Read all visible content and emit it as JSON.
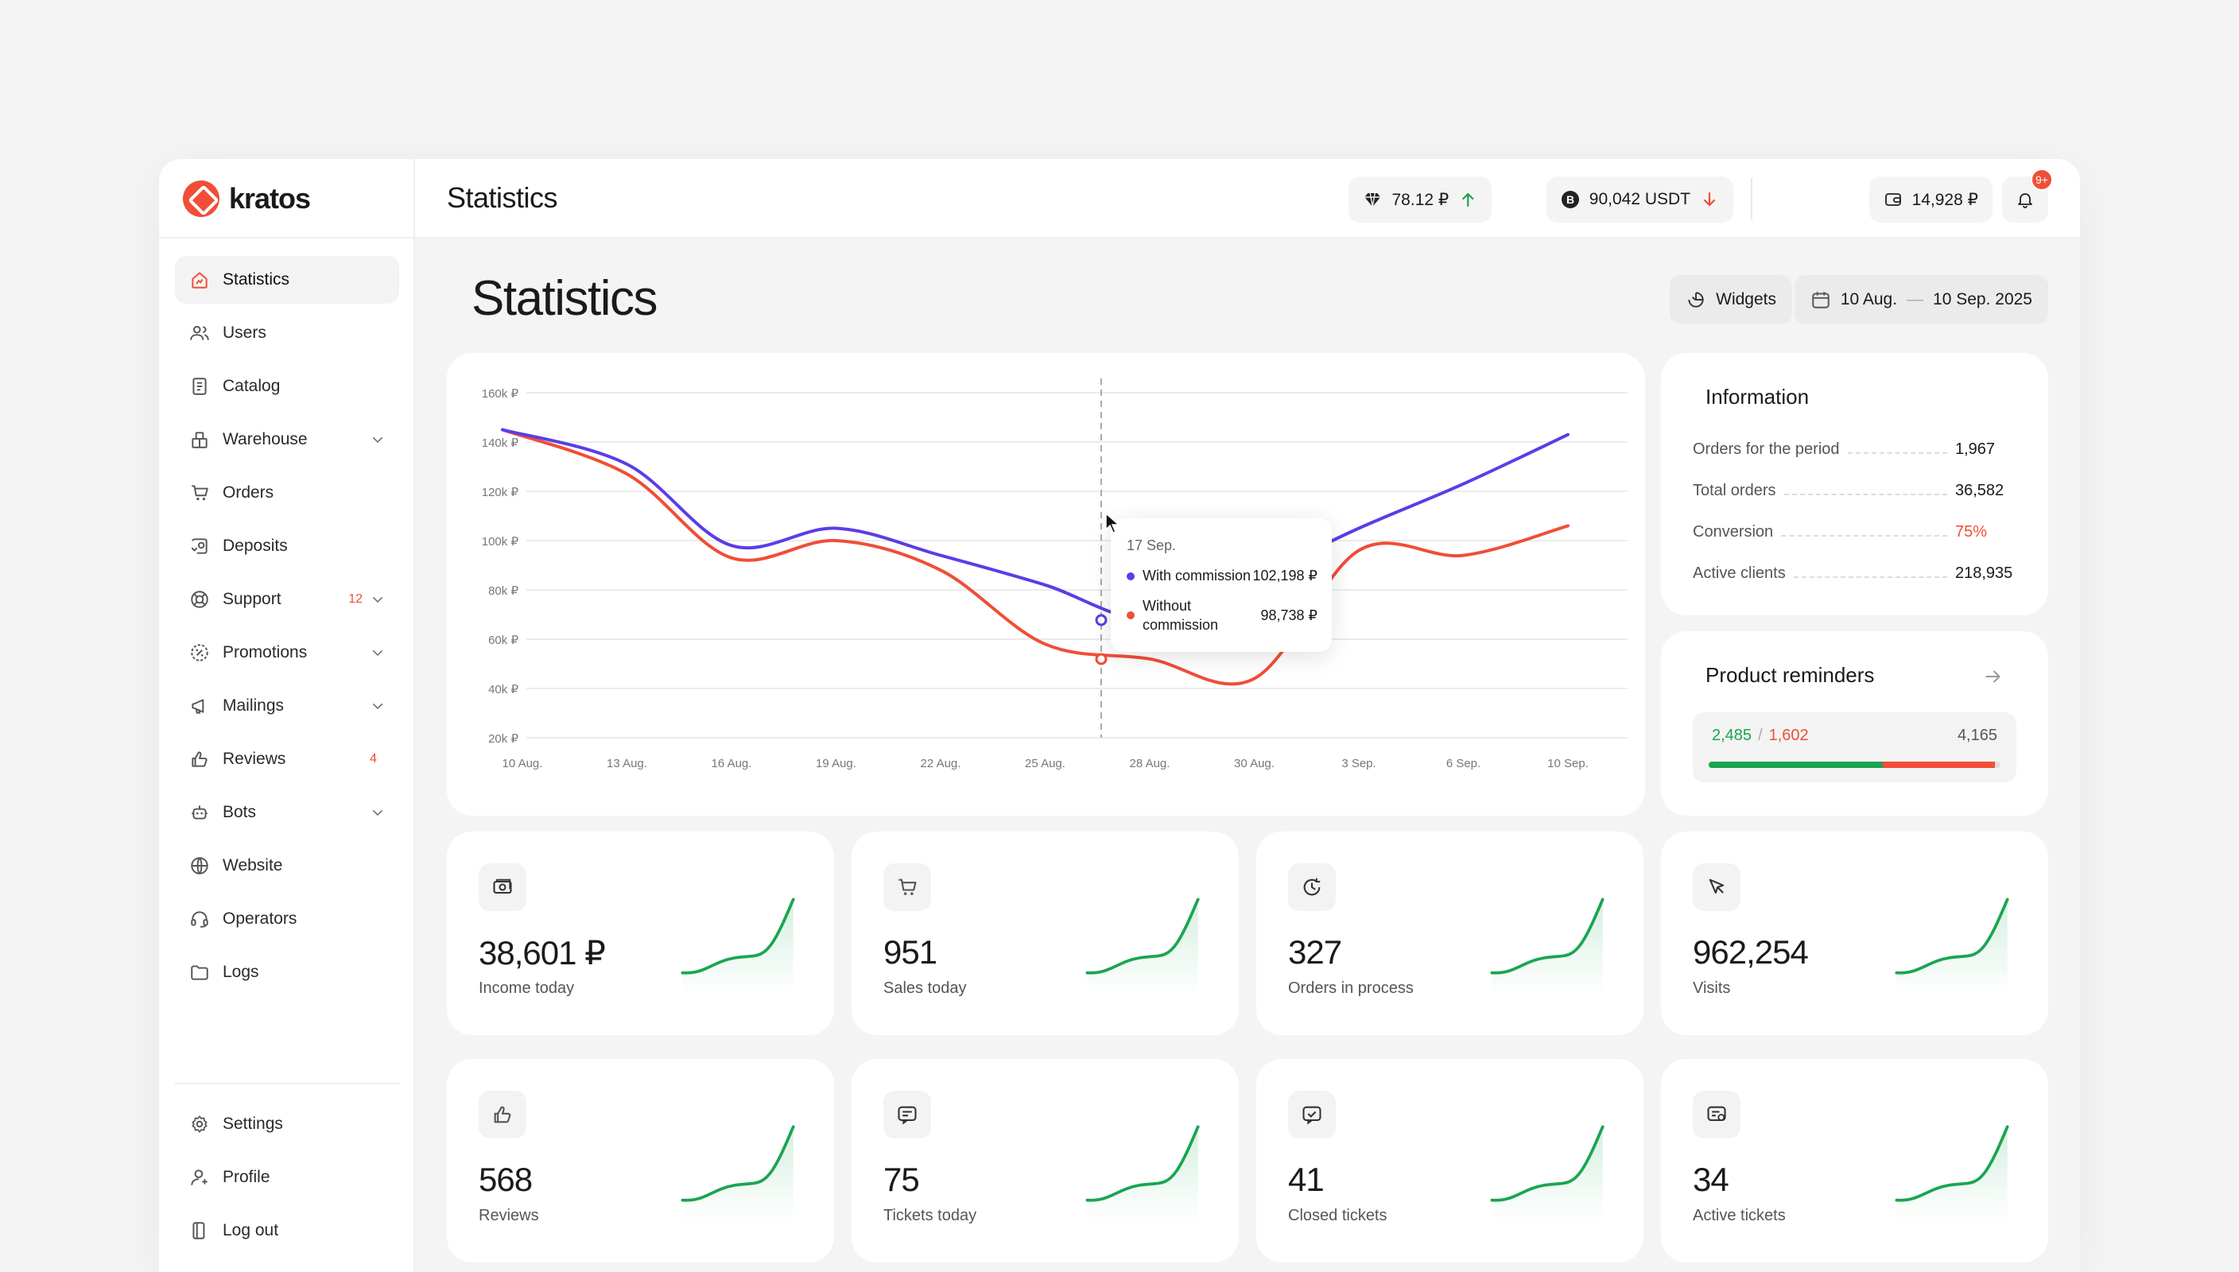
{
  "brand": {
    "name": "kratos",
    "accent": "#f04e37"
  },
  "sidebar": {
    "items": [
      {
        "label": "Statistics",
        "icon": "chart-house-icon",
        "active": true,
        "badge": "",
        "chevron": false
      },
      {
        "label": "Users",
        "icon": "users-icon",
        "badge": "",
        "chevron": false
      },
      {
        "label": "Catalog",
        "icon": "catalog-icon",
        "badge": "",
        "chevron": false
      },
      {
        "label": "Warehouse",
        "icon": "warehouse-icon",
        "badge": "",
        "chevron": true
      },
      {
        "label": "Orders",
        "icon": "cart-icon",
        "badge": "",
        "chevron": false
      },
      {
        "label": "Deposits",
        "icon": "deposits-icon",
        "badge": "",
        "chevron": false
      },
      {
        "label": "Support",
        "icon": "lifebuoy-icon",
        "badge": "12",
        "chevron": true
      },
      {
        "label": "Promotions",
        "icon": "percent-icon",
        "badge": "",
        "chevron": true
      },
      {
        "label": "Mailings",
        "icon": "megaphone-icon",
        "badge": "",
        "chevron": true
      },
      {
        "label": "Reviews",
        "icon": "thumbs-up-icon",
        "badge": "4",
        "chevron": false
      },
      {
        "label": "Bots",
        "icon": "bot-icon",
        "badge": "",
        "chevron": true
      },
      {
        "label": "Website",
        "icon": "globe-icon",
        "badge": "",
        "chevron": false
      },
      {
        "label": "Operators",
        "icon": "headset-icon",
        "badge": "",
        "chevron": false
      },
      {
        "label": "Logs",
        "icon": "folder-icon",
        "badge": "",
        "chevron": false
      }
    ],
    "bottom": [
      {
        "label": "Settings",
        "icon": "gear-icon"
      },
      {
        "label": "Profile",
        "icon": "profile-icon"
      },
      {
        "label": "Log out",
        "icon": "logout-icon"
      }
    ]
  },
  "header": {
    "title": "Statistics",
    "rate1": "78.12 ₽",
    "rate2": "90,042 USDT",
    "balance": "14,928 ₽",
    "notifications": "9+",
    "up_color": "#1aa551",
    "down_color": "#f04e37"
  },
  "page": {
    "title": "Statistics",
    "widgets_label": "Widgets",
    "date_from": "10 Aug.",
    "date_sep": "—",
    "date_to": "10 Sep. 2025"
  },
  "chart_data": {
    "type": "line",
    "x": [
      "10 Aug.",
      "13 Aug.",
      "16 Aug.",
      "19 Aug.",
      "22 Aug.",
      "25 Aug.",
      "28 Aug.",
      "30 Aug.",
      "3 Sep.",
      "6 Sep.",
      "10 Sep."
    ],
    "y_ticks": [
      "160k ₽",
      "140k ₽",
      "120k ₽",
      "100k ₽",
      "80k ₽",
      "60k ₽",
      "40k ₽",
      "20k ₽"
    ],
    "ylim": [
      20000,
      160000
    ],
    "grid": true,
    "series": [
      {
        "name": "With commission",
        "color": "#5b3de6",
        "values": [
          145000,
          131000,
          98000,
          105000,
          94000,
          82000,
          68000,
          85000,
          105000,
          123000,
          143000
        ]
      },
      {
        "name": "Without commission",
        "color": "#f04e37",
        "values": [
          145000,
          127000,
          93000,
          100000,
          88000,
          58000,
          52000,
          44000,
          96000,
          94000,
          106000
        ]
      }
    ],
    "tooltip": {
      "date": "17 Sep.",
      "rows": [
        {
          "label": "With commission",
          "value": "102,198 ₽",
          "color": "#5b3de6"
        },
        {
          "label": "Without commission",
          "value": "98,738 ₽",
          "color": "#f04e37"
        }
      ]
    }
  },
  "information": {
    "title": "Information",
    "rows": [
      {
        "label": "Orders for the period",
        "value": "1,967",
        "color": "#1a1a1a"
      },
      {
        "label": "Total orders",
        "value": "36,582",
        "color": "#1a1a1a"
      },
      {
        "label": "Conversion",
        "value": "75%",
        "color": "#f04e37"
      },
      {
        "label": "Active clients",
        "value": "218,935",
        "color": "#1a1a1a"
      }
    ]
  },
  "reminders": {
    "title": "Product reminders",
    "green": "2,485",
    "sep": "/",
    "red": "1,602",
    "total": "4,165",
    "green_fraction": 0.597,
    "red_fraction": 0.385
  },
  "stats": [
    {
      "value": "38,601 ₽",
      "label": "Income today",
      "icon": "money-icon"
    },
    {
      "value": "951",
      "label": "Sales today",
      "icon": "cart-icon"
    },
    {
      "value": "327",
      "label": "Orders in process",
      "icon": "clock-icon"
    },
    {
      "value": "962,254",
      "label": "Visits",
      "icon": "cursor-icon"
    },
    {
      "value": "568",
      "label": "Reviews",
      "icon": "thumbs-up-icon"
    },
    {
      "value": "75",
      "label": "Tickets today",
      "icon": "message-icon"
    },
    {
      "value": "41",
      "label": "Closed tickets",
      "icon": "message-check-icon"
    },
    {
      "value": "34",
      "label": "Active tickets",
      "icon": "ticket-icon"
    }
  ]
}
